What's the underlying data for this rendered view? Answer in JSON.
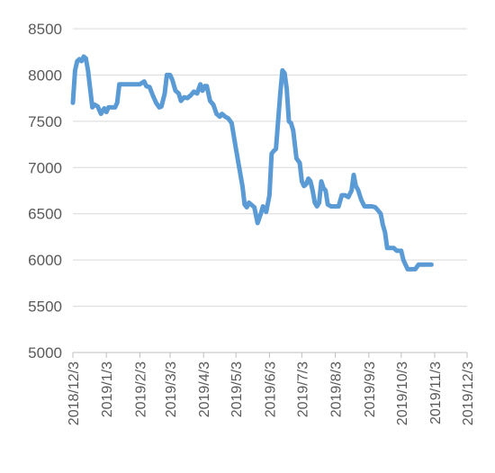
{
  "chart_data": {
    "type": "line",
    "title": "",
    "xlabel": "",
    "ylabel": "",
    "ylim": [
      5000,
      8500
    ],
    "yticks": [
      5000,
      5500,
      6000,
      6500,
      7000,
      7500,
      8000,
      8500
    ],
    "xticks": [
      "2018/12/3",
      "2019/1/3",
      "2019/2/3",
      "2019/3/3",
      "2019/4/3",
      "2019/5/3",
      "2019/6/3",
      "2019/7/3",
      "2019/8/3",
      "2019/9/3",
      "2019/10/3",
      "2019/11/3",
      "2019/12/3"
    ],
    "xlim": [
      "2018/12/3",
      "2019/12/3"
    ],
    "grid": true,
    "legend": "none",
    "series": [
      {
        "color": "#5b9bd5",
        "points": [
          [
            "2018/12/3",
            7700
          ],
          [
            "2018/12/5",
            8050
          ],
          [
            "2018/12/7",
            8150
          ],
          [
            "2018/12/9",
            8170
          ],
          [
            "2018/12/11",
            8150
          ],
          [
            "2018/12/13",
            8200
          ],
          [
            "2018/12/15",
            8180
          ],
          [
            "2018/12/17",
            8050
          ],
          [
            "2018/12/19",
            7850
          ],
          [
            "2018/12/21",
            7650
          ],
          [
            "2018/12/23",
            7680
          ],
          [
            "2018/12/26",
            7660
          ],
          [
            "2018/12/29",
            7580
          ],
          [
            "2019/1/1",
            7640
          ],
          [
            "2019/1/3",
            7600
          ],
          [
            "2019/1/5",
            7650
          ],
          [
            "2019/1/8",
            7650
          ],
          [
            "2019/1/11",
            7650
          ],
          [
            "2019/1/13",
            7700
          ],
          [
            "2019/1/15",
            7900
          ],
          [
            "2019/1/18",
            7900
          ],
          [
            "2019/1/21",
            7900
          ],
          [
            "2019/1/24",
            7900
          ],
          [
            "2019/1/27",
            7900
          ],
          [
            "2019/1/30",
            7900
          ],
          [
            "2019/2/3",
            7900
          ],
          [
            "2019/2/7",
            7930
          ],
          [
            "2019/2/9",
            7880
          ],
          [
            "2019/2/12",
            7870
          ],
          [
            "2019/2/15",
            7780
          ],
          [
            "2019/2/18",
            7700
          ],
          [
            "2019/2/21",
            7650
          ],
          [
            "2019/2/23",
            7660
          ],
          [
            "2019/2/26",
            7800
          ],
          [
            "2019/2/28",
            8000
          ],
          [
            "2019/3/3",
            8000
          ],
          [
            "2019/3/5",
            7950
          ],
          [
            "2019/3/8",
            7830
          ],
          [
            "2019/3/11",
            7800
          ],
          [
            "2019/3/13",
            7720
          ],
          [
            "2019/3/16",
            7760
          ],
          [
            "2019/3/19",
            7750
          ],
          [
            "2019/3/22",
            7780
          ],
          [
            "2019/3/25",
            7820
          ],
          [
            "2019/3/28",
            7800
          ],
          [
            "2019/3/31",
            7900
          ],
          [
            "2019/4/2",
            7830
          ],
          [
            "2019/4/4",
            7880
          ],
          [
            "2019/4/6",
            7880
          ],
          [
            "2019/4/9",
            7720
          ],
          [
            "2019/4/12",
            7680
          ],
          [
            "2019/4/15",
            7580
          ],
          [
            "2019/4/18",
            7550
          ],
          [
            "2019/4/20",
            7580
          ],
          [
            "2019/4/23",
            7550
          ],
          [
            "2019/4/26",
            7530
          ],
          [
            "2019/4/29",
            7480
          ],
          [
            "2019/5/3",
            7200
          ],
          [
            "2019/5/6",
            7000
          ],
          [
            "2019/5/9",
            6800
          ],
          [
            "2019/5/11",
            6600
          ],
          [
            "2019/5/13",
            6570
          ],
          [
            "2019/5/15",
            6620
          ],
          [
            "2019/5/17",
            6600
          ],
          [
            "2019/5/20",
            6570
          ],
          [
            "2019/5/23",
            6400
          ],
          [
            "2019/5/26",
            6500
          ],
          [
            "2019/5/28",
            6580
          ],
          [
            "2019/5/31",
            6520
          ],
          [
            "2019/6/3",
            6700
          ],
          [
            "2019/6/5",
            7150
          ],
          [
            "2019/6/7",
            7180
          ],
          [
            "2019/6/9",
            7200
          ],
          [
            "2019/6/11",
            7500
          ],
          [
            "2019/6/13",
            7800
          ],
          [
            "2019/6/15",
            8050
          ],
          [
            "2019/6/17",
            8020
          ],
          [
            "2019/6/19",
            7850
          ],
          [
            "2019/6/21",
            7500
          ],
          [
            "2019/6/23",
            7480
          ],
          [
            "2019/6/25",
            7400
          ],
          [
            "2019/6/28",
            7100
          ],
          [
            "2019/7/1",
            7050
          ],
          [
            "2019/7/3",
            6850
          ],
          [
            "2019/7/5",
            6800
          ],
          [
            "2019/7/7",
            6820
          ],
          [
            "2019/7/9",
            6880
          ],
          [
            "2019/7/11",
            6850
          ],
          [
            "2019/7/13",
            6750
          ],
          [
            "2019/7/15",
            6620
          ],
          [
            "2019/7/17",
            6580
          ],
          [
            "2019/7/19",
            6620
          ],
          [
            "2019/7/21",
            6850
          ],
          [
            "2019/7/23",
            6780
          ],
          [
            "2019/7/25",
            6750
          ],
          [
            "2019/7/27",
            6600
          ],
          [
            "2019/7/30",
            6580
          ],
          [
            "2019/8/3",
            6580
          ],
          [
            "2019/8/6",
            6580
          ],
          [
            "2019/8/9",
            6700
          ],
          [
            "2019/8/12",
            6700
          ],
          [
            "2019/8/15",
            6680
          ],
          [
            "2019/8/18",
            6750
          ],
          [
            "2019/8/20",
            6920
          ],
          [
            "2019/8/22",
            6800
          ],
          [
            "2019/8/24",
            6760
          ],
          [
            "2019/8/27",
            6650
          ],
          [
            "2019/8/30",
            6580
          ],
          [
            "2019/9/3",
            6580
          ],
          [
            "2019/9/6",
            6580
          ],
          [
            "2019/9/9",
            6570
          ],
          [
            "2019/9/12",
            6530
          ],
          [
            "2019/9/14",
            6500
          ],
          [
            "2019/9/16",
            6380
          ],
          [
            "2019/9/18",
            6300
          ],
          [
            "2019/9/20",
            6130
          ],
          [
            "2019/9/23",
            6130
          ],
          [
            "2019/9/26",
            6130
          ],
          [
            "2019/9/29",
            6100
          ],
          [
            "2019/10/3",
            6100
          ],
          [
            "2019/10/5",
            6000
          ],
          [
            "2019/10/7",
            5950
          ],
          [
            "2019/10/9",
            5900
          ],
          [
            "2019/10/13",
            5900
          ],
          [
            "2019/10/16",
            5900
          ],
          [
            "2019/10/19",
            5950
          ],
          [
            "2019/10/23",
            5950
          ],
          [
            "2019/10/27",
            5950
          ],
          [
            "2019/10/31",
            5950
          ]
        ]
      }
    ]
  }
}
